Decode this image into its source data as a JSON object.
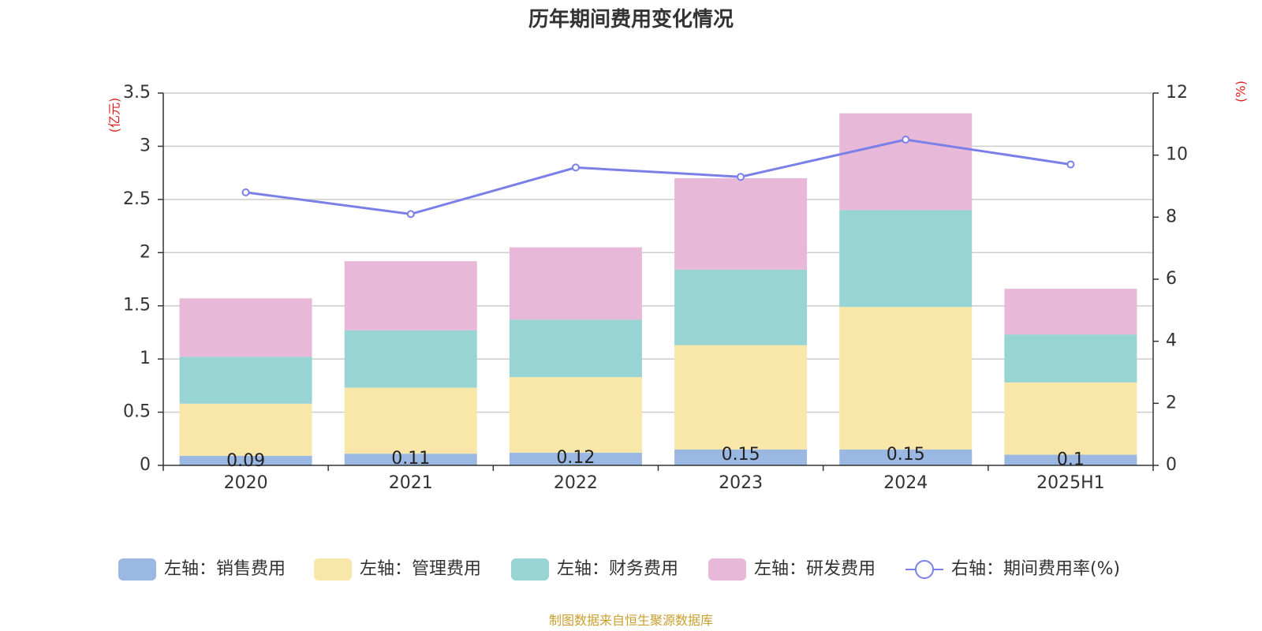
{
  "chart_data": {
    "type": "bar",
    "stacked": true,
    "title": "历年期间费用变化情况",
    "left_unit": "(亿元)",
    "right_unit": "(%)",
    "categories": [
      "2020",
      "2021",
      "2022",
      "2023",
      "2024",
      "2025H1"
    ],
    "ylim_left": [
      0,
      3.5
    ],
    "left_ticks": [
      "0",
      "0.5",
      "1",
      "1.5",
      "2",
      "2.5",
      "3",
      "3.5"
    ],
    "ylim_right": [
      0,
      12
    ],
    "right_ticks": [
      "0",
      "2",
      "4",
      "6",
      "8",
      "10",
      "12"
    ],
    "grid": true,
    "legend_position": "bottom",
    "series": [
      {
        "name": "左轴：销售费用",
        "type": "bar",
        "axis": "left",
        "color": "#9bb8e3",
        "values": [
          0.09,
          0.11,
          0.12,
          0.15,
          0.15,
          0.1
        ],
        "labels": [
          "0.09",
          "0.11",
          "0.12",
          "0.15",
          "0.15",
          "0.1"
        ]
      },
      {
        "name": "左轴：管理费用",
        "type": "bar",
        "axis": "left",
        "color": "#f8e7a8",
        "values": [
          0.49,
          0.62,
          0.71,
          0.98,
          1.34,
          0.68
        ]
      },
      {
        "name": "左轴：财务费用",
        "type": "bar",
        "axis": "left",
        "color": "#98d4d4",
        "values": [
          0.44,
          0.54,
          0.54,
          0.71,
          0.91,
          0.45
        ]
      },
      {
        "name": "左轴：研发费用",
        "type": "bar",
        "axis": "left",
        "color": "#e8b8d8",
        "values": [
          0.55,
          0.65,
          0.68,
          0.86,
          0.91,
          0.43
        ]
      },
      {
        "name": "右轴：期间费用率(%)",
        "type": "line",
        "axis": "right",
        "color": "#7b80e8",
        "values": [
          8.8,
          8.1,
          9.6,
          9.3,
          10.5,
          9.7
        ]
      }
    ]
  },
  "source_note": "制图数据来自恒生聚源数据库"
}
